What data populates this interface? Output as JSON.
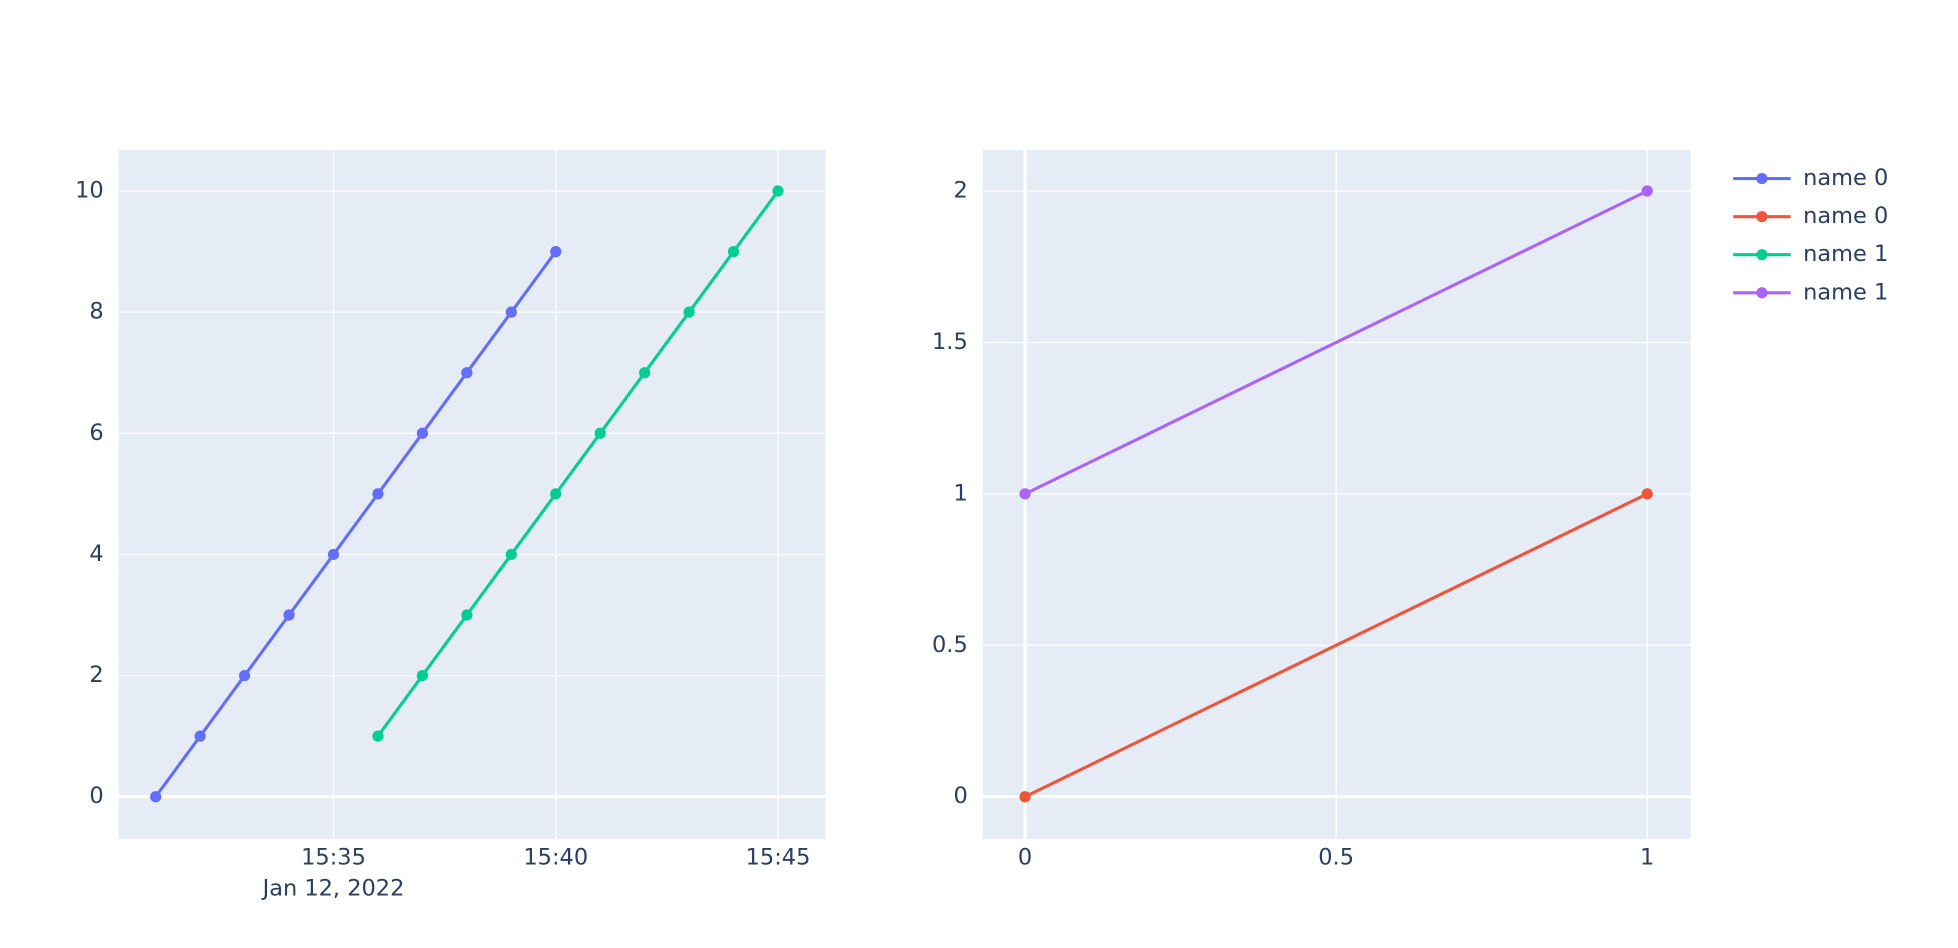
{
  "chart_data": [
    {
      "type": "line",
      "x_date_label": "Jan 12, 2022",
      "x": [
        "2022-01-12 15:31",
        "2022-01-12 15:32",
        "2022-01-12 15:33",
        "2022-01-12 15:34",
        "2022-01-12 15:35",
        "2022-01-12 15:36",
        "2022-01-12 15:37",
        "2022-01-12 15:38",
        "2022-01-12 15:39",
        "2022-01-12 15:40",
        "2022-01-12 15:41",
        "2022-01-12 15:42",
        "2022-01-12 15:43",
        "2022-01-12 15:44",
        "2022-01-12 15:45"
      ],
      "series": [
        {
          "name": "name 0",
          "color": "#636efa",
          "values": [
            0,
            1,
            2,
            3,
            4,
            5,
            6,
            7,
            8,
            9,
            null,
            null,
            null,
            null,
            null
          ]
        },
        {
          "name": "name 1",
          "color": "#00cc96",
          "values": [
            null,
            null,
            null,
            null,
            null,
            1,
            2,
            3,
            4,
            5,
            6,
            7,
            8,
            9,
            10
          ]
        }
      ],
      "xlim": [
        "2022-01-12 15:30:10",
        "2022-01-12 15:46:04"
      ],
      "xticks": [
        {
          "value": "2022-01-12 15:35",
          "label": "15:35"
        },
        {
          "value": "2022-01-12 15:40",
          "label": "15:40"
        },
        {
          "value": "2022-01-12 15:45",
          "label": "15:45"
        }
      ],
      "ylim": [
        -0.7,
        10.68
      ],
      "yticks": [
        0,
        2,
        4,
        6,
        8,
        10
      ],
      "grid": true
    },
    {
      "type": "line",
      "x": [
        0,
        1
      ],
      "series": [
        {
          "name": "name 0",
          "color": "#EF553B",
          "values": [
            0,
            1
          ]
        },
        {
          "name": "name 1",
          "color": "#ab63fa",
          "values": [
            1,
            2
          ]
        }
      ],
      "xlim": [
        -0.068,
        1.07
      ],
      "xticks": [
        0,
        0.5,
        1
      ],
      "ylim": [
        -0.14,
        2.136
      ],
      "yticks": [
        0,
        0.5,
        1,
        1.5,
        2
      ],
      "grid": true
    }
  ]
}
